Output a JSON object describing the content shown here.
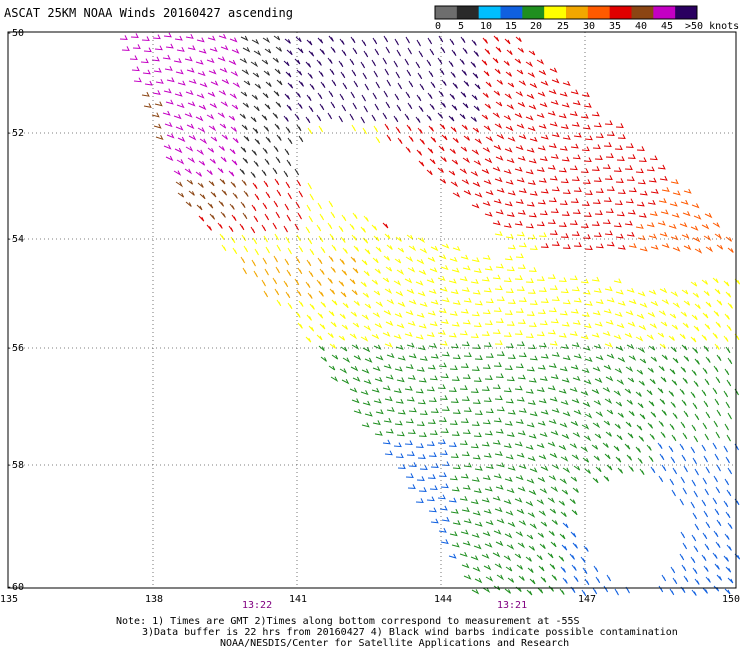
{
  "title": "ASCAT 25KM NOAA Winds 20160427 ascending",
  "legend": {
    "unit_label": ">50 knots",
    "ticks": [
      "0",
      "5",
      "10",
      "15",
      "20",
      "25",
      "30",
      "35",
      "40",
      "45"
    ],
    "colors": [
      "#6e6e6e",
      "#2a2a2a",
      "#00bfff",
      "#1060e0",
      "#1f8f1f",
      "#ffff00",
      "#f2a700",
      "#ff5a00",
      "#e00000",
      "#8b4513",
      "#c400c4",
      "#2a0060"
    ]
  },
  "map": {
    "lat_labels": [
      "-50",
      "-52",
      "-54",
      "-56",
      "-58",
      "-60"
    ],
    "lon_labels": [
      "135",
      "138",
      "141",
      "144",
      "147",
      "150"
    ],
    "times": [
      "13:22",
      "13:21"
    ]
  },
  "notes": [
    "Note: 1) Times are GMT 2)Times along bottom correspond to measurement at -55S",
    "3)Data buffer is 22 hrs from 20160427 4) Black wind barbs indicate possible contamination",
    "NOAA/NESDIS/Center for Satellite Applications and Research"
  ]
}
